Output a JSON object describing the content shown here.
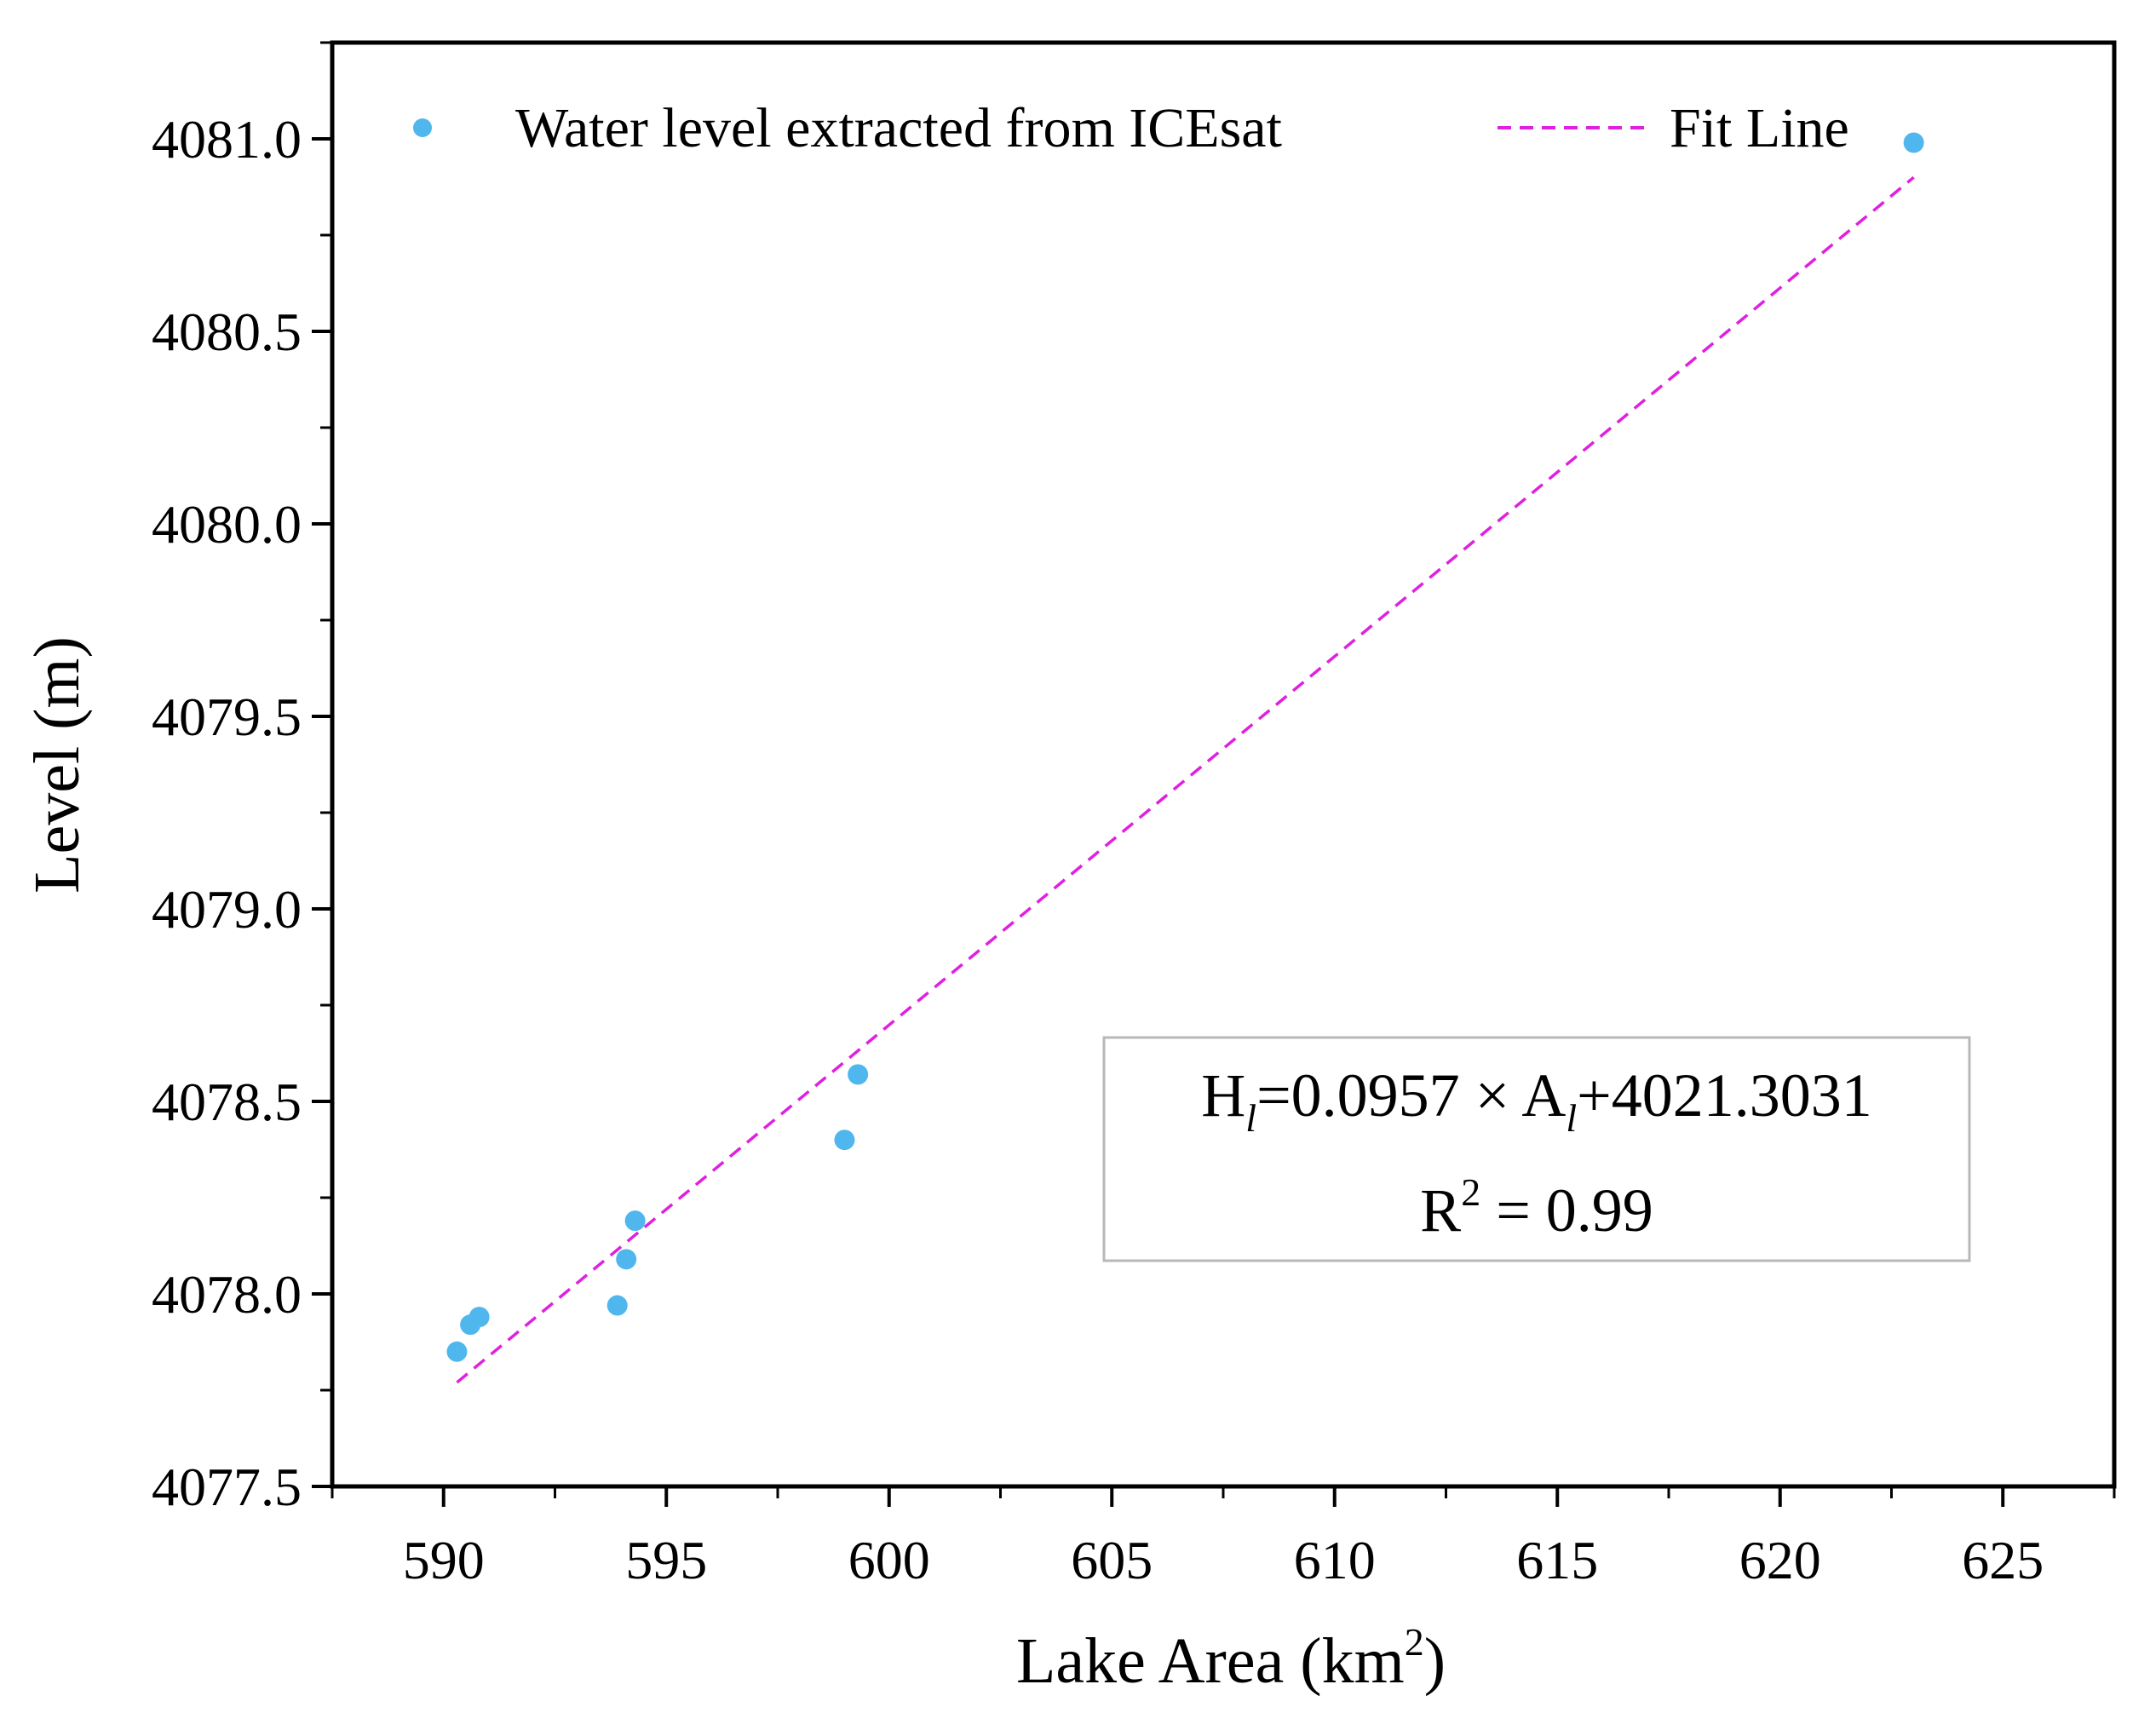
{
  "chart_data": {
    "type": "scatter",
    "title": "",
    "xlabel": "Lake Area (km",
    "xlabel_sup": "2",
    "xlabel_close": ")",
    "ylabel": "Level (m)",
    "xlim": [
      587.5,
      627.5
    ],
    "ylim": [
      4077.5,
      4081.25
    ],
    "xticks": [
      590,
      595,
      600,
      605,
      610,
      615,
      620,
      625
    ],
    "yticks": [
      4077.5,
      4078.0,
      4078.5,
      4079.0,
      4079.5,
      4080.0,
      4080.5,
      4081.0
    ],
    "xtick_labels": [
      "590",
      "595",
      "600",
      "605",
      "610",
      "615",
      "620",
      "625"
    ],
    "ytick_labels": [
      "4077.5",
      "4078.0",
      "4078.5",
      "4079.0",
      "4079.5",
      "4080.0",
      "4080.5",
      "4081.0"
    ],
    "series": [
      {
        "name": "Water level extracted from ICEsat",
        "kind": "scatter",
        "color": "#4fb7ee",
        "x": [
          590.3,
          590.6,
          590.8,
          593.9,
          594.1,
          594.3,
          599.0,
          599.3,
          623.0
        ],
        "y": [
          4077.85,
          4077.92,
          4077.94,
          4077.97,
          4078.09,
          4078.19,
          4078.4,
          4078.57,
          4080.99
        ]
      },
      {
        "name": "Fit Line",
        "kind": "line",
        "style": "dashed",
        "color": "#e020e0",
        "x": [
          590.3,
          623.0
        ],
        "y": [
          4077.77,
          4080.9
        ]
      }
    ],
    "legend_position": "top",
    "annotation": {
      "eq_H": "H",
      "eq_sub1": "l",
      "eq_mid": "=0.0957 × A",
      "eq_sub2": "l",
      "eq_end": "+4021.3031",
      "r2_R": "R",
      "r2_sup": "2",
      "r2_value": " = 0.99"
    }
  }
}
